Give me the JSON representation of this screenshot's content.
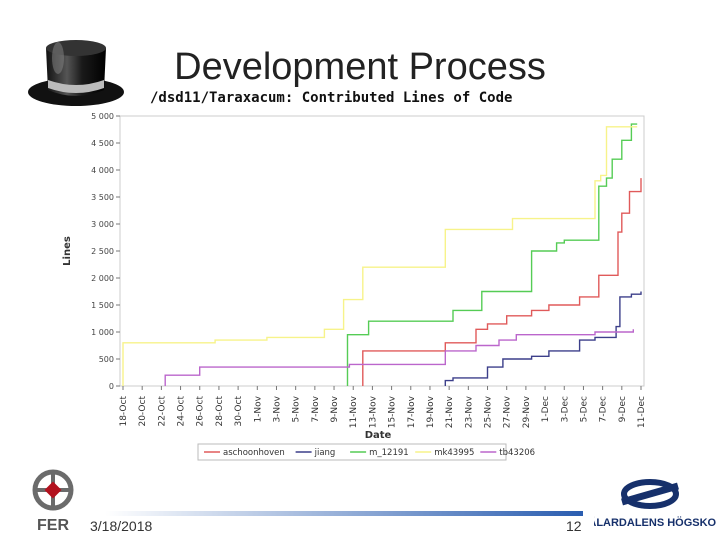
{
  "slide": {
    "title": "Development Process",
    "date": "3/18/2018",
    "page_number": "12",
    "university_logo_text": "MÄLARDALENS HÖGSKOLA",
    "faculty_logo_text": "FER"
  },
  "chart_data": {
    "type": "line",
    "title": "/dsd11/Taraxacum: Contributed Lines of Code",
    "xlabel": "Date",
    "ylabel": "Lines",
    "ylim": [
      0,
      5000
    ],
    "yticks": [
      "0",
      "500",
      "1 000",
      "1 500",
      "2 000",
      "2 500",
      "3 000",
      "3 500",
      "4 000",
      "4 500",
      "5 000"
    ],
    "ytick_values": [
      0,
      500,
      1000,
      1500,
      2000,
      2500,
      3000,
      3500,
      4000,
      4500,
      5000
    ],
    "x_categories": [
      "18-Oct",
      "20-Oct",
      "22-Oct",
      "24-Oct",
      "26-Oct",
      "28-Oct",
      "30-Oct",
      "1-Nov",
      "3-Nov",
      "5-Nov",
      "7-Nov",
      "9-Nov",
      "11-Nov",
      "13-Nov",
      "15-Nov",
      "17-Nov",
      "19-Nov",
      "21-Nov",
      "23-Nov",
      "25-Nov",
      "27-Nov",
      "29-Nov",
      "1-Dec",
      "3-Dec",
      "5-Dec",
      "7-Dec",
      "9-Dec",
      "11-Dec"
    ],
    "legend_position": "bottom",
    "series": [
      {
        "name": "aschoonhoven",
        "color": "#e05a5a",
        "points": [
          [
            12.5,
            0
          ],
          [
            12.5,
            500
          ],
          [
            12.5,
            650
          ],
          [
            16.8,
            650
          ],
          [
            16.8,
            800
          ],
          [
            18.4,
            800
          ],
          [
            18.4,
            1050
          ],
          [
            19,
            1050
          ],
          [
            19,
            1150
          ],
          [
            20,
            1150
          ],
          [
            20,
            1300
          ],
          [
            21.3,
            1300
          ],
          [
            21.3,
            1400
          ],
          [
            22.2,
            1400
          ],
          [
            22.2,
            1500
          ],
          [
            23.8,
            1500
          ],
          [
            23.8,
            1650
          ],
          [
            24.8,
            1650
          ],
          [
            24.8,
            2050
          ],
          [
            25.8,
            2050
          ],
          [
            25.8,
            2850
          ],
          [
            26,
            2850
          ],
          [
            26,
            3200
          ],
          [
            26.4,
            3200
          ],
          [
            26.4,
            3600
          ],
          [
            27,
            3600
          ],
          [
            27,
            3850
          ]
        ]
      },
      {
        "name": "jiang",
        "color": "#3c3f8a",
        "points": [
          [
            16.8,
            0
          ],
          [
            16.8,
            100
          ],
          [
            17.2,
            100
          ],
          [
            17.2,
            150
          ],
          [
            19,
            150
          ],
          [
            19,
            350
          ],
          [
            19.8,
            350
          ],
          [
            19.8,
            500
          ],
          [
            21.3,
            500
          ],
          [
            21.3,
            550
          ],
          [
            22.2,
            550
          ],
          [
            22.2,
            650
          ],
          [
            23.8,
            650
          ],
          [
            23.8,
            850
          ],
          [
            24.6,
            850
          ],
          [
            24.6,
            900
          ],
          [
            25.7,
            900
          ],
          [
            25.7,
            1100
          ],
          [
            25.9,
            1100
          ],
          [
            25.9,
            1650
          ],
          [
            26.5,
            1650
          ],
          [
            26.5,
            1700
          ],
          [
            27,
            1700
          ],
          [
            27,
            1750
          ]
        ]
      },
      {
        "name": "m_12191",
        "color": "#55cc55",
        "points": [
          [
            11.7,
            0
          ],
          [
            11.7,
            950
          ],
          [
            12.8,
            950
          ],
          [
            12.8,
            1200
          ],
          [
            17.2,
            1200
          ],
          [
            17.2,
            1400
          ],
          [
            18.7,
            1400
          ],
          [
            18.7,
            1750
          ],
          [
            21.3,
            1750
          ],
          [
            21.3,
            1750
          ],
          [
            21.3,
            2500
          ],
          [
            22.6,
            2500
          ],
          [
            22.6,
            2650
          ],
          [
            23,
            2650
          ],
          [
            23,
            2700
          ],
          [
            24.8,
            2700
          ],
          [
            24.8,
            3700
          ],
          [
            25.2,
            3700
          ],
          [
            25.2,
            3850
          ],
          [
            25.5,
            3850
          ],
          [
            25.5,
            4200
          ],
          [
            26,
            4200
          ],
          [
            26,
            4550
          ],
          [
            26.5,
            4550
          ],
          [
            26.5,
            4850
          ],
          [
            26.8,
            4850
          ]
        ]
      },
      {
        "name": "mk43995",
        "color": "#f7f38a",
        "points": [
          [
            0,
            0
          ],
          [
            0,
            800
          ],
          [
            4.8,
            800
          ],
          [
            4.8,
            850
          ],
          [
            7.5,
            850
          ],
          [
            7.5,
            900
          ],
          [
            10.5,
            900
          ],
          [
            10.5,
            1050
          ],
          [
            11.5,
            1050
          ],
          [
            11.5,
            1600
          ],
          [
            12.5,
            1600
          ],
          [
            12.5,
            2200
          ],
          [
            15,
            2200
          ],
          [
            15,
            2200
          ],
          [
            16.8,
            2200
          ],
          [
            16.8,
            2900
          ],
          [
            20.3,
            2900
          ],
          [
            20.3,
            3100
          ],
          [
            24.6,
            3100
          ],
          [
            24.6,
            3800
          ],
          [
            24.9,
            3800
          ],
          [
            24.9,
            3900
          ],
          [
            25.2,
            3900
          ],
          [
            25.2,
            4800
          ],
          [
            26.8,
            4800
          ]
        ]
      },
      {
        "name": "tb43206",
        "color": "#bb66cc",
        "points": [
          [
            2.2,
            0
          ],
          [
            2.2,
            200
          ],
          [
            4,
            200
          ],
          [
            4,
            350
          ],
          [
            11.8,
            350
          ],
          [
            11.8,
            400
          ],
          [
            16.8,
            400
          ],
          [
            16.8,
            650
          ],
          [
            18.4,
            650
          ],
          [
            18.4,
            750
          ],
          [
            19.6,
            750
          ],
          [
            19.6,
            850
          ],
          [
            20.5,
            850
          ],
          [
            20.5,
            950
          ],
          [
            24.6,
            950
          ],
          [
            24.6,
            1000
          ],
          [
            25.7,
            1000
          ],
          [
            25.7,
            1000
          ],
          [
            26.6,
            1000
          ],
          [
            26.6,
            1050
          ]
        ]
      }
    ]
  }
}
